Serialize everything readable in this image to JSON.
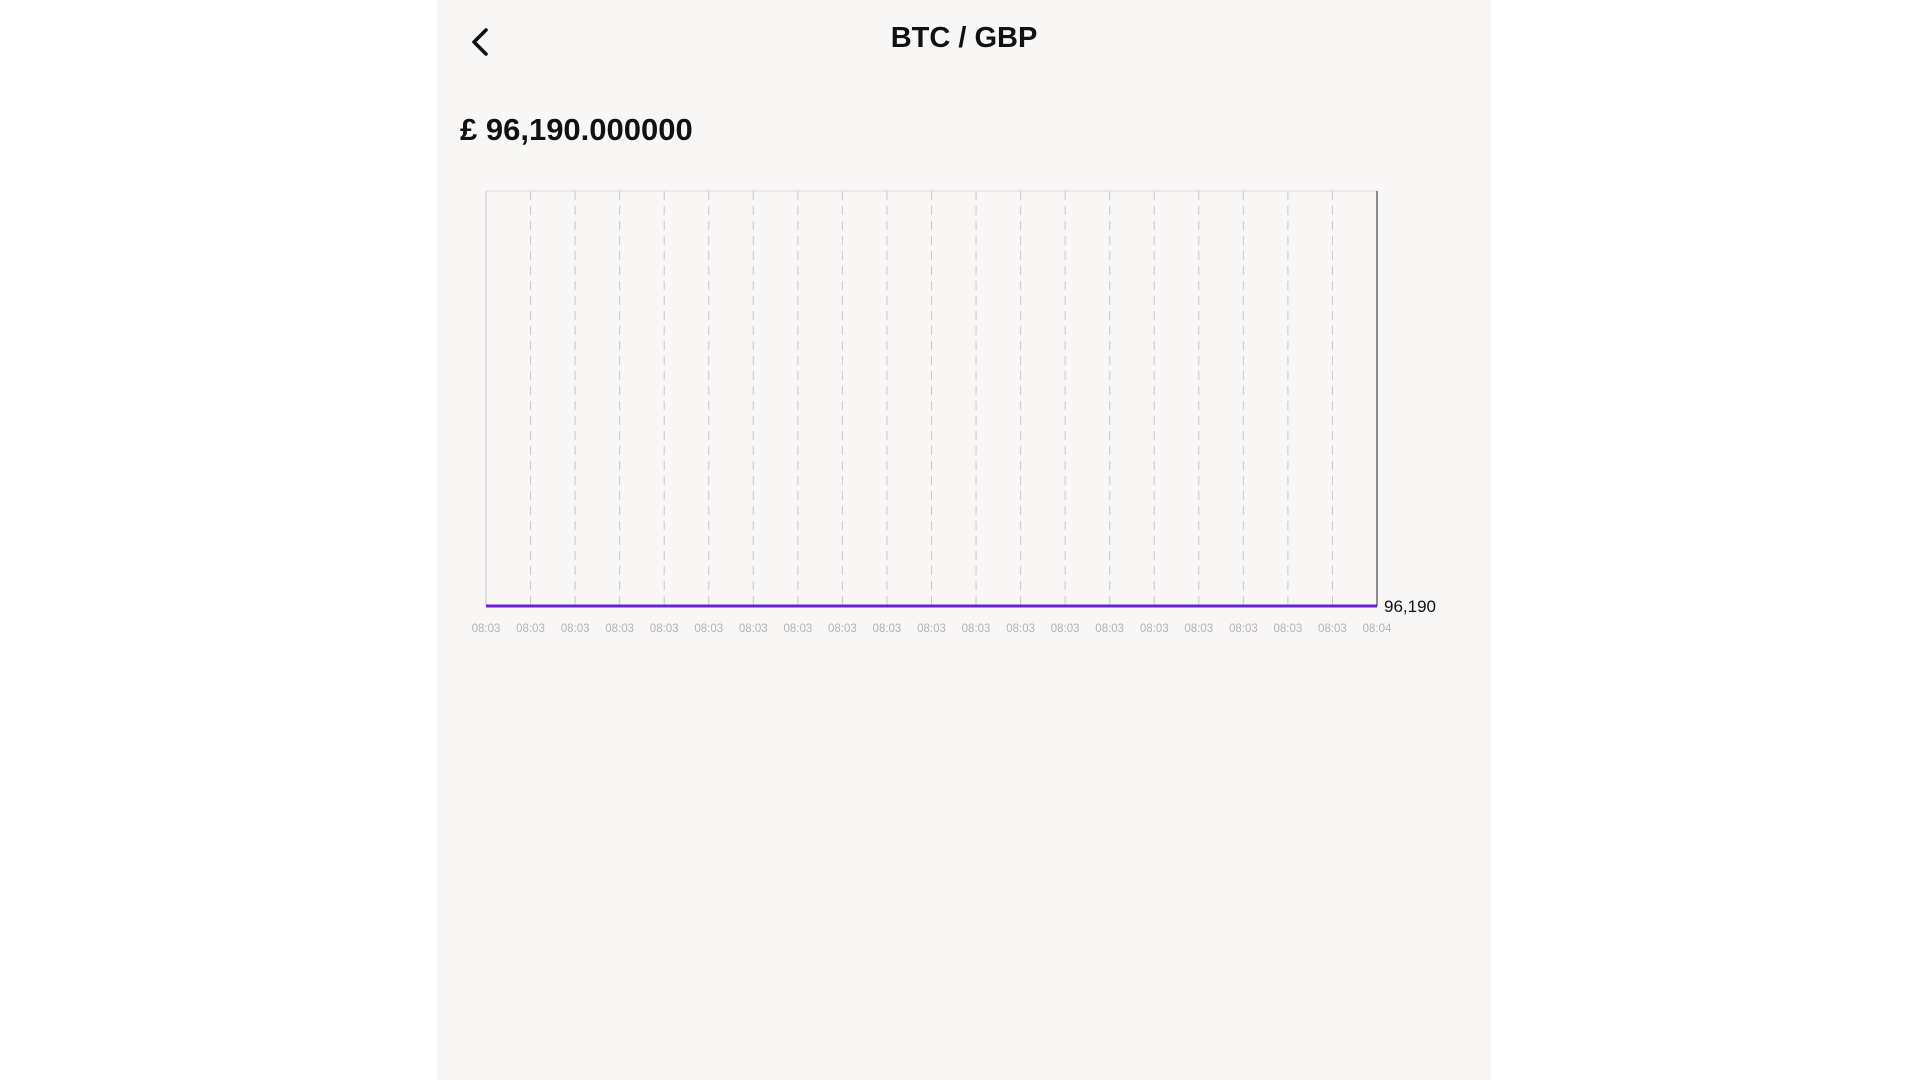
{
  "header": {
    "title": "BTC / GBP",
    "back_icon": "chevron-left-icon"
  },
  "price": {
    "display": "£ 96,190.000000"
  },
  "colors": {
    "line": "#6a1fd8",
    "grid": "#c9c6d0",
    "tick_label": "#b3b0b8",
    "background": "#f8f7f6"
  },
  "chart_data": {
    "type": "line",
    "x": [
      "08:03",
      "08:03",
      "08:03",
      "08:03",
      "08:03",
      "08:03",
      "08:03",
      "08:03",
      "08:03",
      "08:03",
      "08:03",
      "08:03",
      "08:03",
      "08:03",
      "08:03",
      "08:03",
      "08:03",
      "08:03",
      "08:03",
      "08:03",
      "08:04"
    ],
    "series": [
      {
        "values": [
          96190,
          96190,
          96190,
          96190,
          96190,
          96190,
          96190,
          96190,
          96190,
          96190,
          96190,
          96190,
          96190,
          96190,
          96190,
          96190,
          96190,
          96190,
          96190,
          96190,
          96190
        ]
      }
    ],
    "last_value_label": "96,190",
    "ylim": [
      96190,
      96200
    ],
    "grid": "vertical-dashed",
    "legend": "none"
  }
}
